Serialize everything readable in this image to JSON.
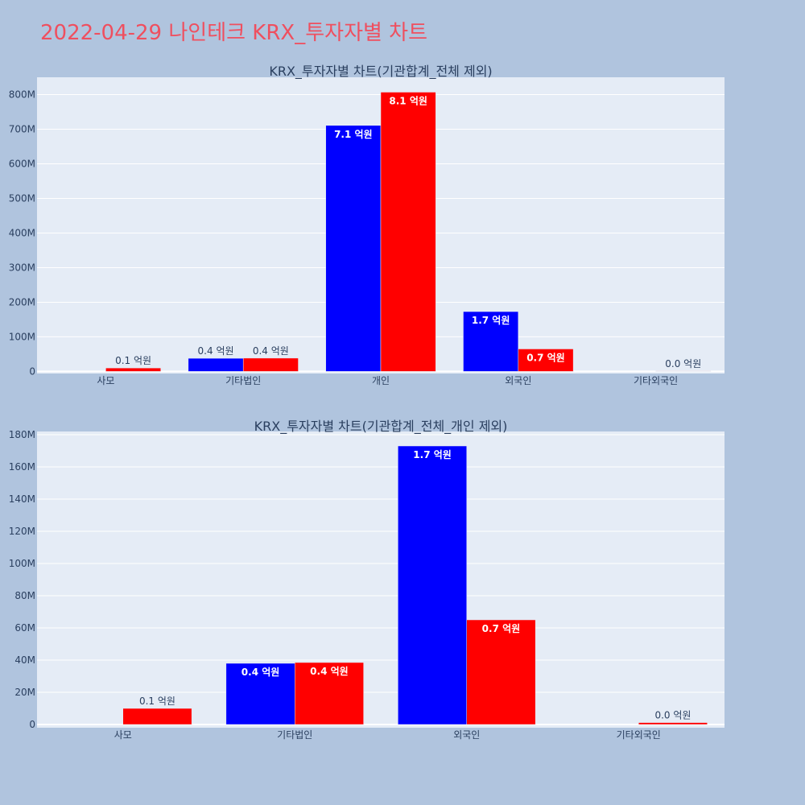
{
  "page_title": "2022-04-29 나인테크 KRX_투자자별 차트",
  "colors": {
    "buy": "#0000ff",
    "sell": "#ff0000",
    "title": "#ef4f5f",
    "plot_bg": "#e5ecf6",
    "page_bg": "#b0c4de"
  },
  "chart_data": [
    {
      "type": "bar",
      "title": "KRX_투자자별 차트(기관합계_전체 제외)",
      "categories": [
        "사모",
        "기타법인",
        "개인",
        "외국인",
        "기타외국인"
      ],
      "series": [
        {
          "color": "#0000ff",
          "values": [
            0,
            38000000,
            711000000,
            173000000,
            0
          ],
          "labels": [
            "",
            "0.4 억원",
            "7.1 억원",
            "1.7 억원",
            ""
          ]
        },
        {
          "color": "#ff0000",
          "values": [
            10000000,
            38500000,
            807000000,
            65000000,
            1200000
          ],
          "labels": [
            "0.1 억원",
            "0.4 억원",
            "8.1 억원",
            "0.7 억원",
            "0.0 억원"
          ]
        }
      ],
      "yticks": [
        0,
        100000000,
        200000000,
        300000000,
        400000000,
        500000000,
        600000000,
        700000000,
        800000000
      ],
      "ytick_labels": [
        "0",
        "100M",
        "200M",
        "300M",
        "400M",
        "500M",
        "600M",
        "700M",
        "800M"
      ],
      "ylim": [
        -6000000,
        850000000
      ]
    },
    {
      "type": "bar",
      "title": "KRX_투자자별 차트(기관합계_전체_개인 제외)",
      "categories": [
        "사모",
        "기타법인",
        "외국인",
        "기타외국인"
      ],
      "series": [
        {
          "color": "#0000ff",
          "values": [
            0,
            38000000,
            173000000,
            0
          ],
          "labels": [
            "",
            "0.4 억원",
            "1.7 억원",
            ""
          ]
        },
        {
          "color": "#ff0000",
          "values": [
            10000000,
            38500000,
            65000000,
            1200000
          ],
          "labels": [
            "0.1 억원",
            "0.4 억원",
            "0.7 억원",
            "0.0 억원"
          ]
        }
      ],
      "yticks": [
        0,
        20000000,
        40000000,
        60000000,
        80000000,
        100000000,
        120000000,
        140000000,
        160000000,
        180000000
      ],
      "ytick_labels": [
        "0",
        "20M",
        "40M",
        "60M",
        "80M",
        "100M",
        "120M",
        "140M",
        "160M",
        "180M"
      ],
      "ylim": [
        -2000000,
        182000000
      ]
    }
  ]
}
